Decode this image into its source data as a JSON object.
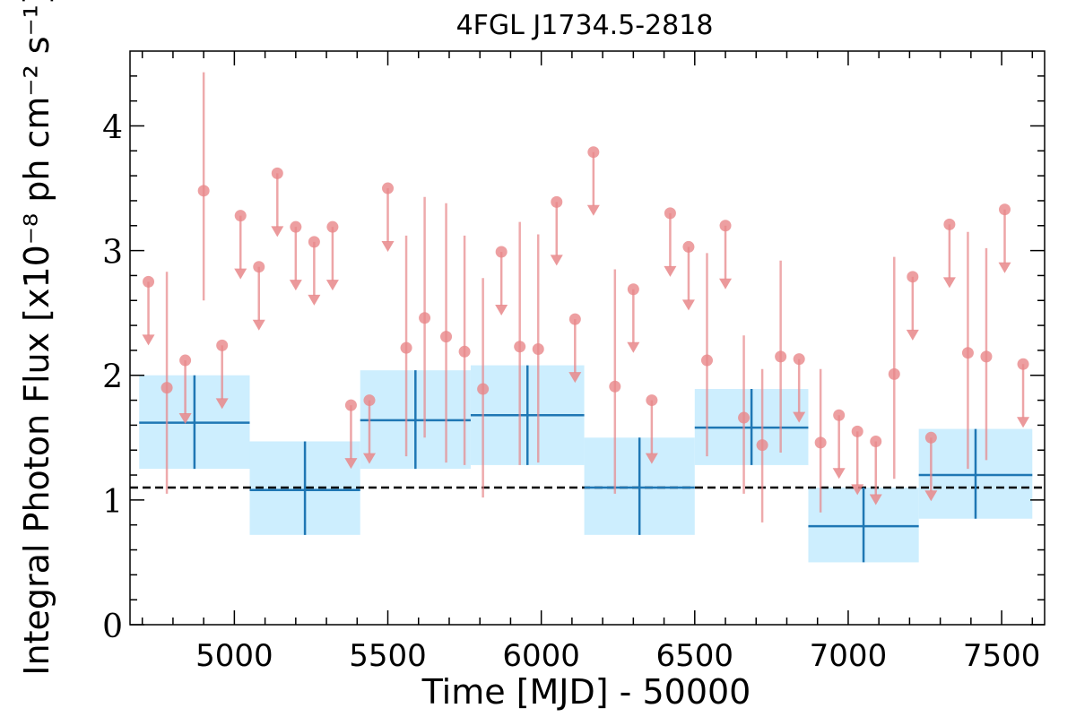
{
  "chart_data": {
    "type": "scatter",
    "title": "4FGL J1734.5-2818",
    "xlabel": "Time [MJD] - 50000",
    "ylabel": "Integral Photon Flux [x10⁻⁸ ph cm⁻² s⁻¹]",
    "xlim": [
      4660,
      7640
    ],
    "ylim": [
      0,
      4.6
    ],
    "x_ticks": [
      5000,
      5500,
      6000,
      6500,
      7000,
      7500
    ],
    "y_ticks": [
      0,
      1,
      2,
      3,
      4
    ],
    "reference_line": {
      "y": 1.1,
      "style": "dashed",
      "color": "#000000"
    },
    "colors": {
      "short_bins": "#e8878a",
      "long_bins": "#1f77b4",
      "long_bin_band": "#cdeefe"
    },
    "long_bins": [
      {
        "x0": 4690,
        "x1": 5050,
        "y": 1.62,
        "ylo": 1.25,
        "yhi": 2.0
      },
      {
        "x0": 5050,
        "x1": 5410,
        "y": 1.08,
        "ylo": 0.72,
        "yhi": 1.47
      },
      {
        "x0": 5410,
        "x1": 5770,
        "y": 1.64,
        "ylo": 1.25,
        "yhi": 2.04
      },
      {
        "x0": 5770,
        "x1": 6140,
        "y": 1.68,
        "ylo": 1.28,
        "yhi": 2.08
      },
      {
        "x0": 6140,
        "x1": 6500,
        "y": 1.1,
        "ylo": 0.72,
        "yhi": 1.5
      },
      {
        "x0": 6500,
        "x1": 6870,
        "y": 1.58,
        "ylo": 1.28,
        "yhi": 1.89
      },
      {
        "x0": 6870,
        "x1": 7230,
        "y": 0.79,
        "ylo": 0.5,
        "yhi": 1.1
      },
      {
        "x0": 7230,
        "x1": 7600,
        "y": 1.2,
        "ylo": 0.85,
        "yhi": 1.57
      }
    ],
    "short_bins": [
      {
        "x": 4720,
        "y": 2.75,
        "upper_limit": true
      },
      {
        "x": 4780,
        "y": 1.9,
        "ylo": 1.05,
        "yhi": 2.83
      },
      {
        "x": 4840,
        "y": 2.12,
        "upper_limit": true
      },
      {
        "x": 4900,
        "y": 3.48,
        "ylo": 2.6,
        "yhi": 4.43
      },
      {
        "x": 4960,
        "y": 2.24,
        "upper_limit": true
      },
      {
        "x": 5020,
        "y": 3.28,
        "upper_limit": true
      },
      {
        "x": 5080,
        "y": 2.87,
        "upper_limit": true
      },
      {
        "x": 5140,
        "y": 3.62,
        "upper_limit": true
      },
      {
        "x": 5200,
        "y": 3.19,
        "upper_limit": true
      },
      {
        "x": 5260,
        "y": 3.07,
        "upper_limit": true
      },
      {
        "x": 5320,
        "y": 3.19,
        "upper_limit": true
      },
      {
        "x": 5380,
        "y": 1.76,
        "upper_limit": true
      },
      {
        "x": 5440,
        "y": 1.8,
        "upper_limit": true
      },
      {
        "x": 5500,
        "y": 3.5,
        "upper_limit": true
      },
      {
        "x": 5560,
        "y": 2.22,
        "ylo": 1.35,
        "yhi": 3.12
      },
      {
        "x": 5620,
        "y": 2.46,
        "ylo": 1.5,
        "yhi": 3.43
      },
      {
        "x": 5690,
        "y": 2.31,
        "ylo": 1.3,
        "yhi": 3.38
      },
      {
        "x": 5750,
        "y": 2.19,
        "ylo": 1.28,
        "yhi": 3.12
      },
      {
        "x": 5810,
        "y": 1.89,
        "ylo": 1.02,
        "yhi": 2.78
      },
      {
        "x": 5870,
        "y": 2.99,
        "upper_limit": true
      },
      {
        "x": 5930,
        "y": 2.23,
        "ylo": 1.28,
        "yhi": 3.23
      },
      {
        "x": 5990,
        "y": 2.21,
        "ylo": 1.3,
        "yhi": 3.13
      },
      {
        "x": 6050,
        "y": 3.39,
        "upper_limit": true
      },
      {
        "x": 6110,
        "y": 2.45,
        "upper_limit": true
      },
      {
        "x": 6170,
        "y": 3.79,
        "upper_limit": true
      },
      {
        "x": 6240,
        "y": 1.91,
        "ylo": 1.05,
        "yhi": 2.85
      },
      {
        "x": 6300,
        "y": 2.69,
        "upper_limit": true
      },
      {
        "x": 6360,
        "y": 1.8,
        "upper_limit": true
      },
      {
        "x": 6420,
        "y": 3.3,
        "upper_limit": true
      },
      {
        "x": 6480,
        "y": 3.03,
        "upper_limit": true
      },
      {
        "x": 6540,
        "y": 2.12,
        "ylo": 1.35,
        "yhi": 2.98
      },
      {
        "x": 6600,
        "y": 3.2,
        "upper_limit": true
      },
      {
        "x": 6660,
        "y": 1.66,
        "ylo": 1.05,
        "yhi": 2.32
      },
      {
        "x": 6720,
        "y": 1.44,
        "ylo": 0.82,
        "yhi": 2.05
      },
      {
        "x": 6780,
        "y": 2.15,
        "ylo": 1.38,
        "yhi": 2.92
      },
      {
        "x": 6840,
        "y": 2.13,
        "upper_limit": true
      },
      {
        "x": 6910,
        "y": 1.46,
        "ylo": 0.9,
        "yhi": 2.05
      },
      {
        "x": 6970,
        "y": 1.68,
        "upper_limit": true
      },
      {
        "x": 7030,
        "y": 1.55,
        "upper_limit": true
      },
      {
        "x": 7090,
        "y": 1.47,
        "upper_limit": true
      },
      {
        "x": 7150,
        "y": 2.01,
        "ylo": 1.17,
        "yhi": 2.95
      },
      {
        "x": 7210,
        "y": 2.79,
        "upper_limit": true
      },
      {
        "x": 7270,
        "y": 1.5,
        "upper_limit": true
      },
      {
        "x": 7330,
        "y": 3.21,
        "upper_limit": true
      },
      {
        "x": 7390,
        "y": 2.18,
        "ylo": 1.25,
        "yhi": 3.15
      },
      {
        "x": 7450,
        "y": 2.15,
        "ylo": 1.32,
        "yhi": 3.02
      },
      {
        "x": 7510,
        "y": 3.33,
        "upper_limit": true
      },
      {
        "x": 7570,
        "y": 2.09,
        "upper_limit": true
      }
    ]
  }
}
